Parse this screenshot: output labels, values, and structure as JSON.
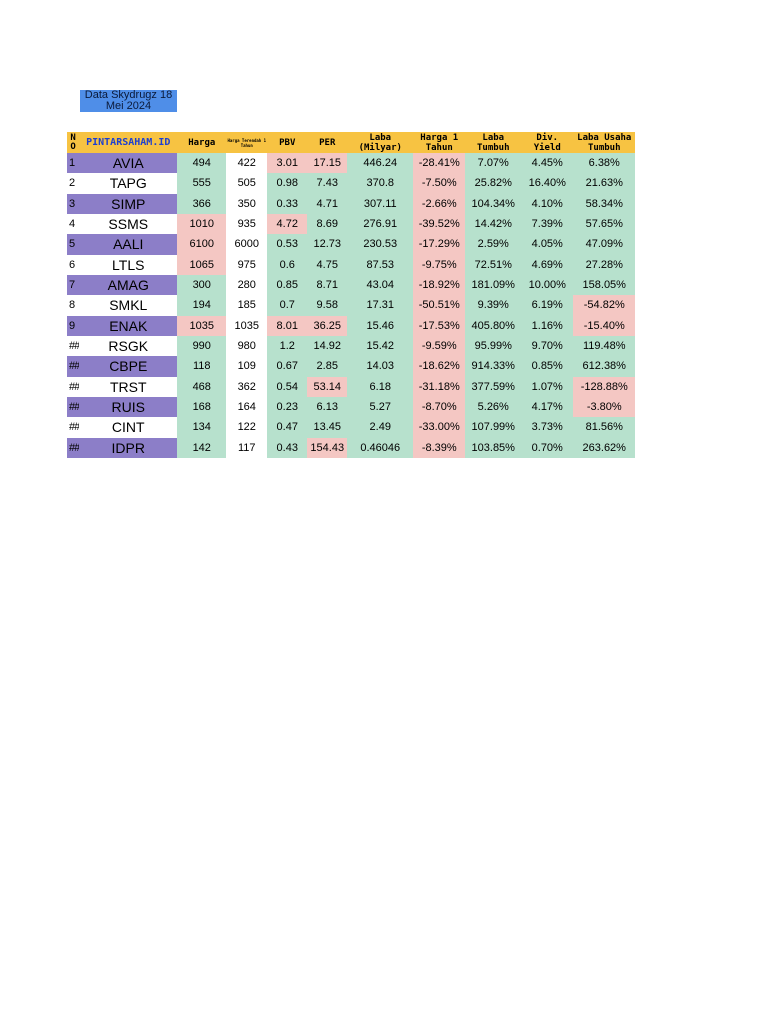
{
  "title": {
    "line1": "Data Skydrugz 18",
    "line2": "Mei 2024"
  },
  "headers": {
    "no": "N\nO",
    "brand": "PINTARSAHAM.ID",
    "harga": "Harga",
    "harga_terendah": "Harga Terendah 1 Tahun",
    "pbv": "PBV",
    "per": "PER",
    "laba": "Laba (Milyar)",
    "harga_1_tahun": "Harga 1 Tahun",
    "laba_tumbuh": "Laba Tumbuh",
    "div_yield": "Div. Yield",
    "laba_usaha_tumbuh": "Laba Usaha Tumbuh"
  },
  "colors": {
    "header": "#f7c342",
    "brand_text": "#1d3fd1",
    "title_bg": "#4f8ee8",
    "purple_row": "#8c7ec8",
    "green": "#b7e1cd",
    "red": "#f4c7c3"
  },
  "rows": [
    {
      "no": "1",
      "code": "AVIA",
      "harga": "494",
      "terendah": "422",
      "pbv": "3.01",
      "per": "17.15",
      "laba": "446.24",
      "harga1": "-28.41%",
      "laba_tumbuh": "7.07%",
      "div": "4.45%",
      "usaha": "6.38%"
    },
    {
      "no": "2",
      "code": "TAPG",
      "harga": "555",
      "terendah": "505",
      "pbv": "0.98",
      "per": "7.43",
      "laba": "370.8",
      "harga1": "-7.50%",
      "laba_tumbuh": "25.82%",
      "div": "16.40%",
      "usaha": "21.63%"
    },
    {
      "no": "3",
      "code": "SIMP",
      "harga": "366",
      "terendah": "350",
      "pbv": "0.33",
      "per": "4.71",
      "laba": "307.11",
      "harga1": "-2.66%",
      "laba_tumbuh": "104.34%",
      "div": "4.10%",
      "usaha": "58.34%"
    },
    {
      "no": "4",
      "code": "SSMS",
      "harga": "1010",
      "terendah": "935",
      "pbv": "4.72",
      "per": "8.69",
      "laba": "276.91",
      "harga1": "-39.52%",
      "laba_tumbuh": "14.42%",
      "div": "7.39%",
      "usaha": "57.65%"
    },
    {
      "no": "5",
      "code": "AALI",
      "harga": "6100",
      "terendah": "6000",
      "pbv": "0.53",
      "per": "12.73",
      "laba": "230.53",
      "harga1": "-17.29%",
      "laba_tumbuh": "2.59%",
      "div": "4.05%",
      "usaha": "47.09%"
    },
    {
      "no": "6",
      "code": "LTLS",
      "harga": "1065",
      "terendah": "975",
      "pbv": "0.6",
      "per": "4.75",
      "laba": "87.53",
      "harga1": "-9.75%",
      "laba_tumbuh": "72.51%",
      "div": "4.69%",
      "usaha": "27.28%"
    },
    {
      "no": "7",
      "code": "AMAG",
      "harga": "300",
      "terendah": "280",
      "pbv": "0.85",
      "per": "8.71",
      "laba": "43.04",
      "harga1": "-18.92%",
      "laba_tumbuh": "181.09%",
      "div": "10.00%",
      "usaha": "158.05%"
    },
    {
      "no": "8",
      "code": "SMKL",
      "harga": "194",
      "terendah": "185",
      "pbv": "0.7",
      "per": "9.58",
      "laba": "17.31",
      "harga1": "-50.51%",
      "laba_tumbuh": "9.39%",
      "div": "6.19%",
      "usaha": "-54.82%"
    },
    {
      "no": "9",
      "code": "ENAK",
      "harga": "1035",
      "terendah": "1035",
      "pbv": "8.01",
      "per": "36.25",
      "laba": "15.46",
      "harga1": "-17.53%",
      "laba_tumbuh": "405.80%",
      "div": "1.16%",
      "usaha": "-15.40%"
    },
    {
      "no": "##",
      "code": "RSGK",
      "harga": "990",
      "terendah": "980",
      "pbv": "1.2",
      "per": "14.92",
      "laba": "15.42",
      "harga1": "-9.59%",
      "laba_tumbuh": "95.99%",
      "div": "9.70%",
      "usaha": "119.48%"
    },
    {
      "no": "##",
      "code": "CBPE",
      "harga": "118",
      "terendah": "109",
      "pbv": "0.67",
      "per": "2.85",
      "laba": "14.03",
      "harga1": "-18.62%",
      "laba_tumbuh": "914.33%",
      "div": "0.85%",
      "usaha": "612.38%"
    },
    {
      "no": "##",
      "code": "TRST",
      "harga": "468",
      "terendah": "362",
      "pbv": "0.54",
      "per": "53.14",
      "laba": "6.18",
      "harga1": "-31.18%",
      "laba_tumbuh": "377.59%",
      "div": "1.07%",
      "usaha": "-128.88%"
    },
    {
      "no": "##",
      "code": "RUIS",
      "harga": "168",
      "terendah": "164",
      "pbv": "0.23",
      "per": "6.13",
      "laba": "5.27",
      "harga1": "-8.70%",
      "laba_tumbuh": "5.26%",
      "div": "4.17%",
      "usaha": "-3.80%"
    },
    {
      "no": "##",
      "code": "CINT",
      "harga": "134",
      "terendah": "122",
      "pbv": "0.47",
      "per": "13.45",
      "laba": "2.49",
      "harga1": "-33.00%",
      "laba_tumbuh": "107.99%",
      "div": "3.73%",
      "usaha": "81.56%"
    },
    {
      "no": "##",
      "code": "IDPR",
      "harga": "142",
      "terendah": "117",
      "pbv": "0.43",
      "per": "154.43",
      "laba": "0.46046",
      "harga1": "-8.39%",
      "laba_tumbuh": "103.85%",
      "div": "0.70%",
      "usaha": "263.62%"
    }
  ]
}
